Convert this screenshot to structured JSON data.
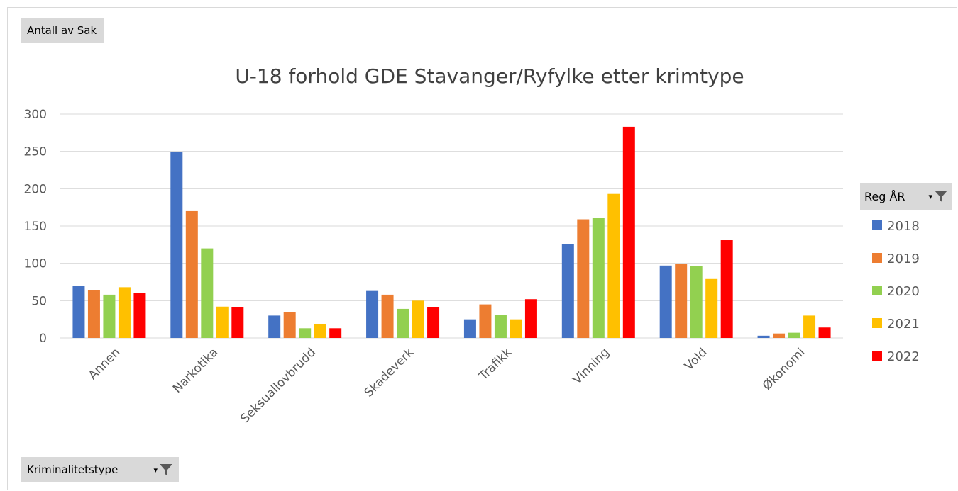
{
  "pivot": {
    "values_field": "Antall av Sak",
    "axis_field": "Kriminalitetstype",
    "legend_field": "Reg ÅR"
  },
  "icons": {
    "filter": "filter-funnel-icon",
    "dropdown": "dropdown-arrow-icon"
  },
  "chart_data": {
    "type": "bar",
    "title": "U-18 forhold GDE Stavanger/Ryfylke etter krimtype",
    "xlabel": "",
    "ylabel": "",
    "ylim": [
      0,
      300
    ],
    "yticks": [
      0,
      50,
      100,
      150,
      200,
      250,
      300
    ],
    "grid": true,
    "legend_position": "right",
    "categories": [
      "Annen",
      "Narkotika",
      "Seksuallovbrudd",
      "Skadeverk",
      "Trafikk",
      "Vinning",
      "Vold",
      "Økonomi"
    ],
    "series": [
      {
        "name": "2018",
        "color": "#4472c4",
        "values": [
          70,
          249,
          30,
          63,
          25,
          126,
          97,
          3
        ]
      },
      {
        "name": "2019",
        "color": "#ed7d31",
        "values": [
          64,
          170,
          35,
          58,
          45,
          159,
          99,
          6
        ]
      },
      {
        "name": "2020",
        "color": "#92d050",
        "values": [
          58,
          120,
          13,
          39,
          31,
          161,
          96,
          7
        ]
      },
      {
        "name": "2021",
        "color": "#ffc000",
        "values": [
          68,
          42,
          19,
          50,
          25,
          193,
          79,
          30
        ]
      },
      {
        "name": "2022",
        "color": "#ff0000",
        "values": [
          60,
          41,
          13,
          41,
          52,
          283,
          131,
          14
        ]
      }
    ]
  }
}
